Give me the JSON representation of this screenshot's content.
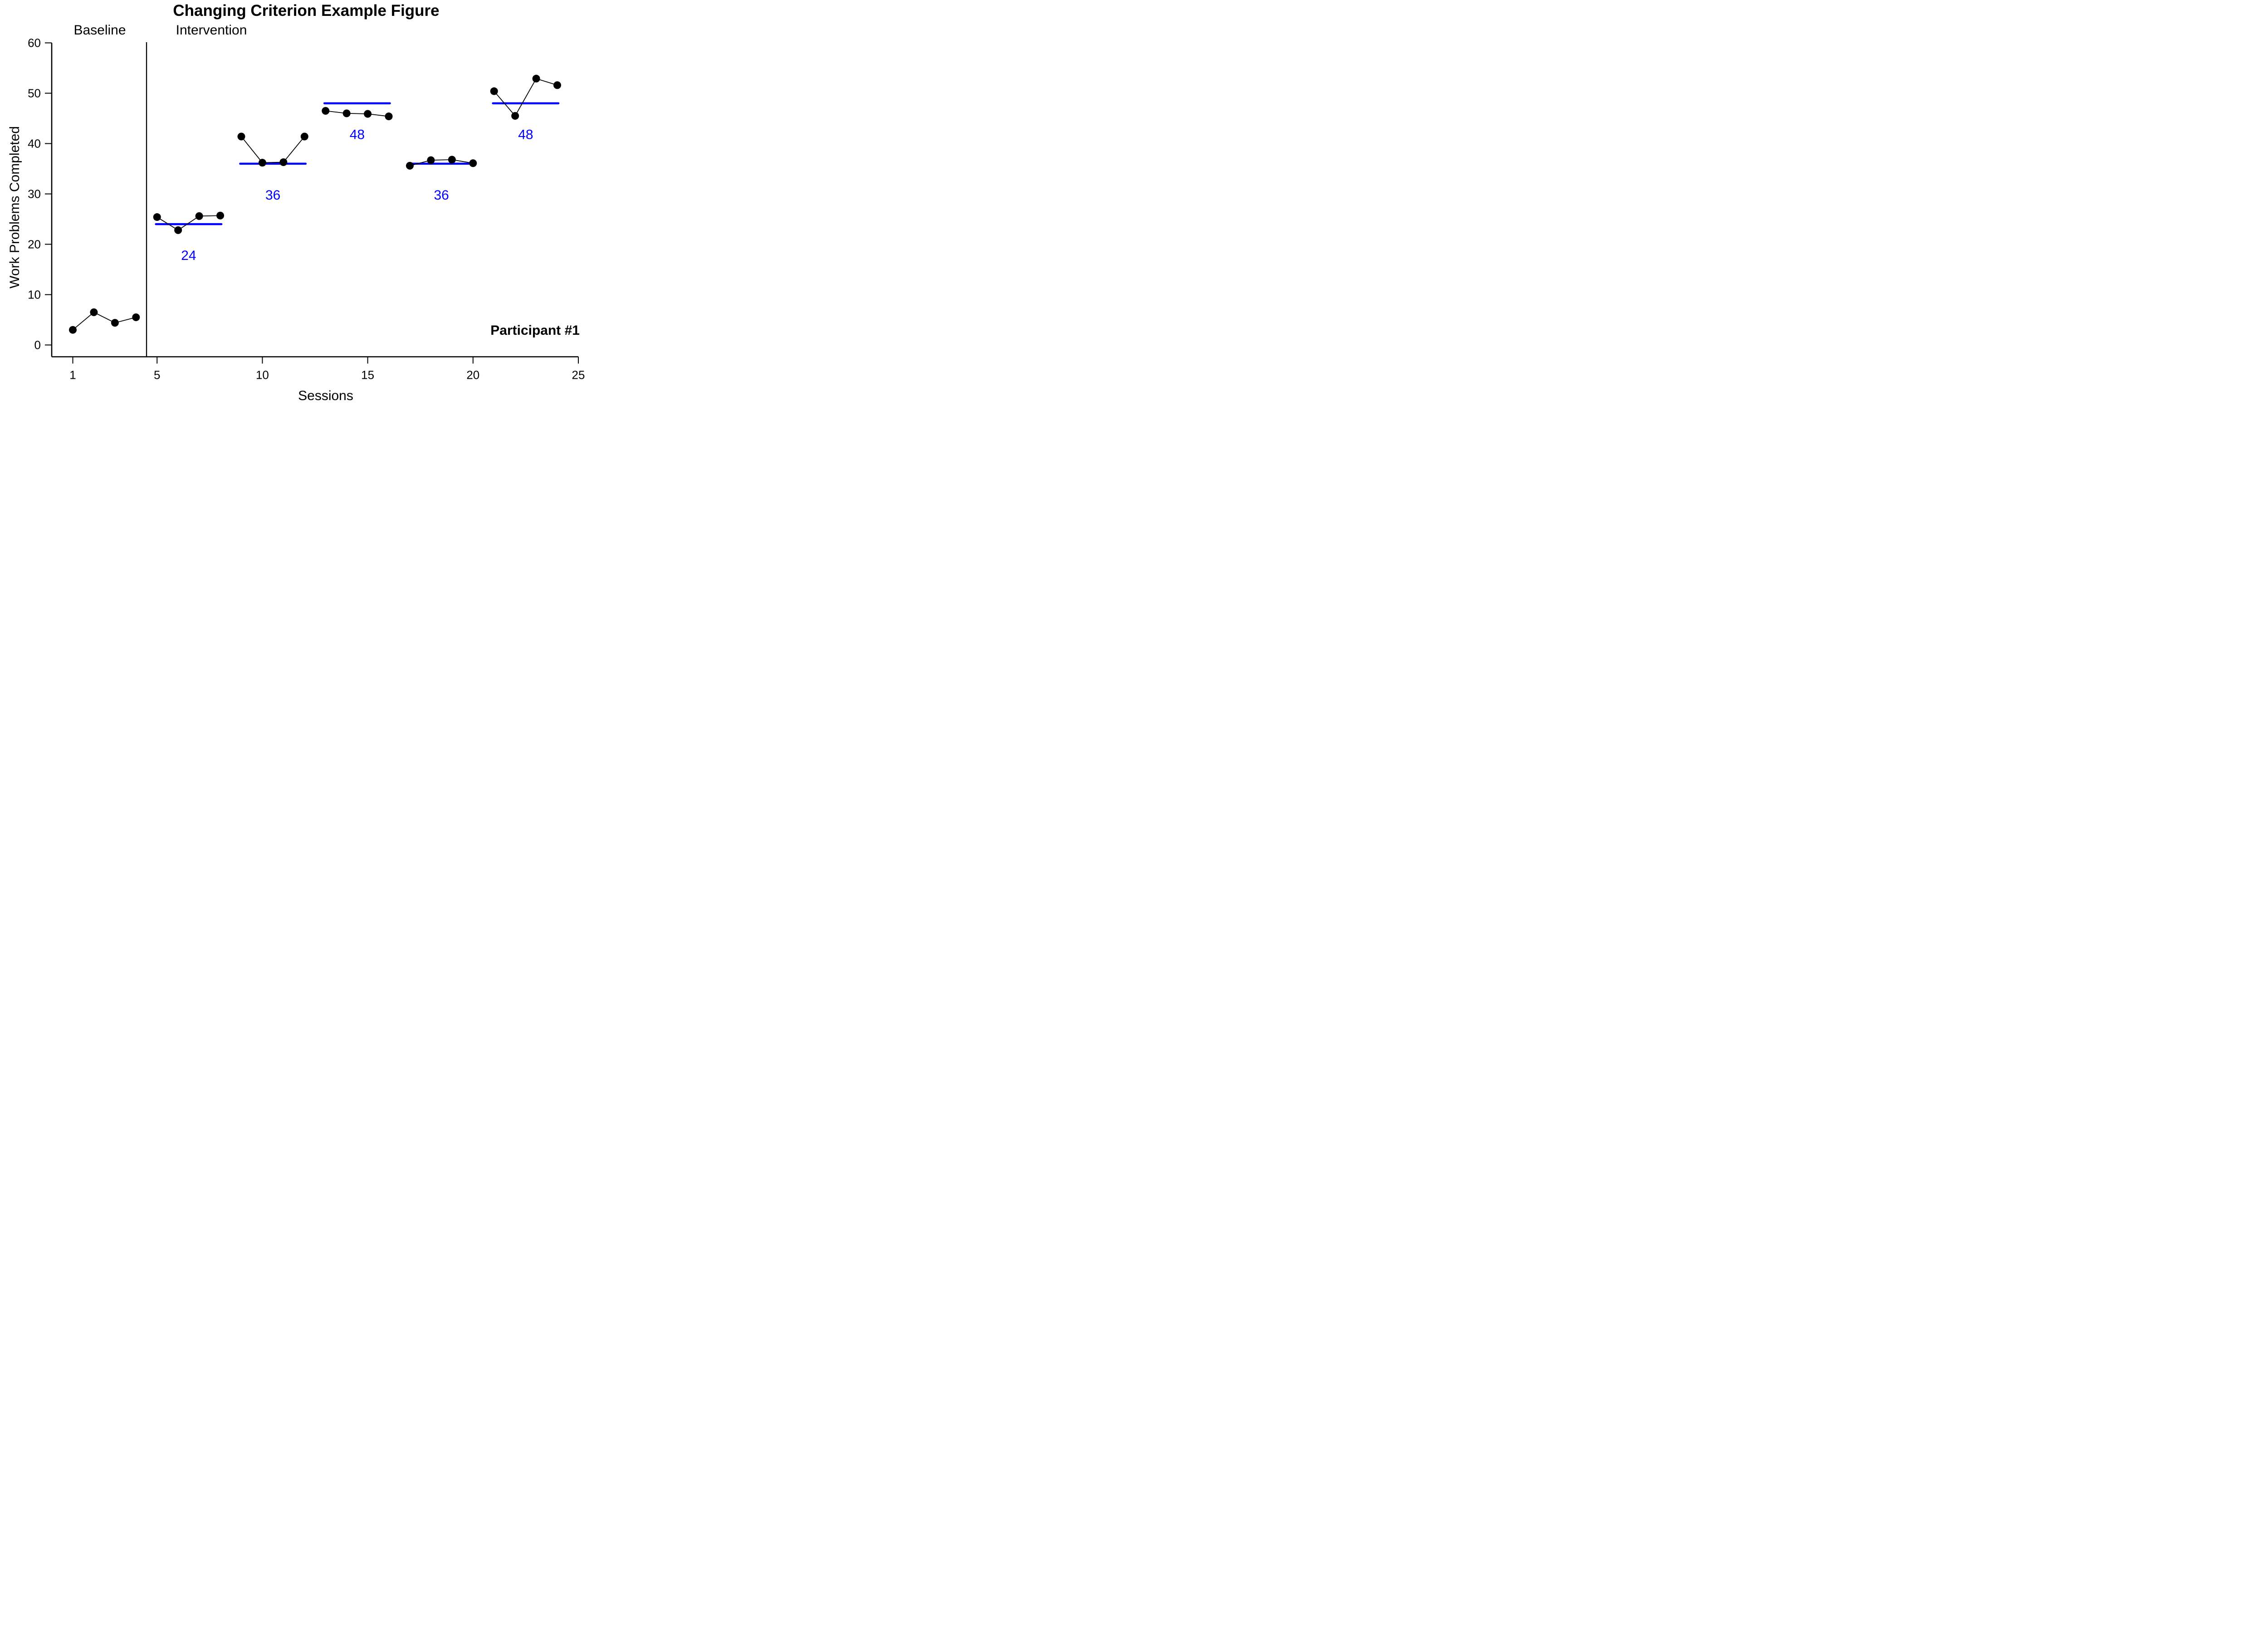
{
  "title": "Changing Criterion Example Figure",
  "participant_label": "Participant #1",
  "phase_header_labels": {
    "baseline": "Baseline",
    "intervention": "Intervention"
  },
  "axes": {
    "x_label": "Sessions",
    "y_label": "Work Problems Completed",
    "x_ticks": [
      1,
      5,
      10,
      15,
      20,
      25
    ],
    "y_ticks": [
      0,
      10,
      20,
      30,
      40,
      50,
      60
    ]
  },
  "colors": {
    "criterion_line": "#0000ff",
    "data_series": "#000000",
    "background": "#ffffff"
  },
  "chart_data": {
    "type": "line",
    "title": "Changing Criterion Example Figure",
    "xlabel": "Sessions",
    "ylabel": "Work Problems Completed",
    "xlim": [
      1,
      25
    ],
    "ylim": [
      0,
      60
    ],
    "grid": false,
    "legend": "none",
    "marker": "filled-circle",
    "phase_change_line_x": 4.5,
    "phases": [
      {
        "phase": "Baseline",
        "criterion": null,
        "sessions": [
          1,
          2,
          3,
          4
        ],
        "values": [
          3.0,
          6.5,
          4.4,
          5.5
        ]
      },
      {
        "phase": "Intervention",
        "criterion": 24,
        "sessions": [
          5,
          6,
          7,
          8
        ],
        "values": [
          25.4,
          22.8,
          25.6,
          25.7
        ]
      },
      {
        "phase": "Intervention",
        "criterion": 36,
        "sessions": [
          9,
          10,
          11,
          12
        ],
        "values": [
          41.4,
          36.2,
          36.3,
          41.4
        ]
      },
      {
        "phase": "Intervention",
        "criterion": 48,
        "sessions": [
          13,
          14,
          15,
          16
        ],
        "values": [
          46.5,
          46.0,
          45.9,
          45.4
        ]
      },
      {
        "phase": "Intervention",
        "criterion": 36,
        "sessions": [
          17,
          18,
          19,
          20
        ],
        "values": [
          35.6,
          36.7,
          36.8,
          36.1
        ]
      },
      {
        "phase": "Intervention",
        "criterion": 48,
        "sessions": [
          21,
          22,
          23,
          24
        ],
        "values": [
          50.4,
          45.5,
          52.9,
          51.6
        ]
      }
    ],
    "criterion_labels": [
      "24",
      "36",
      "48",
      "36",
      "48"
    ],
    "annotations": [
      "Baseline",
      "Intervention",
      "Participant #1"
    ]
  }
}
